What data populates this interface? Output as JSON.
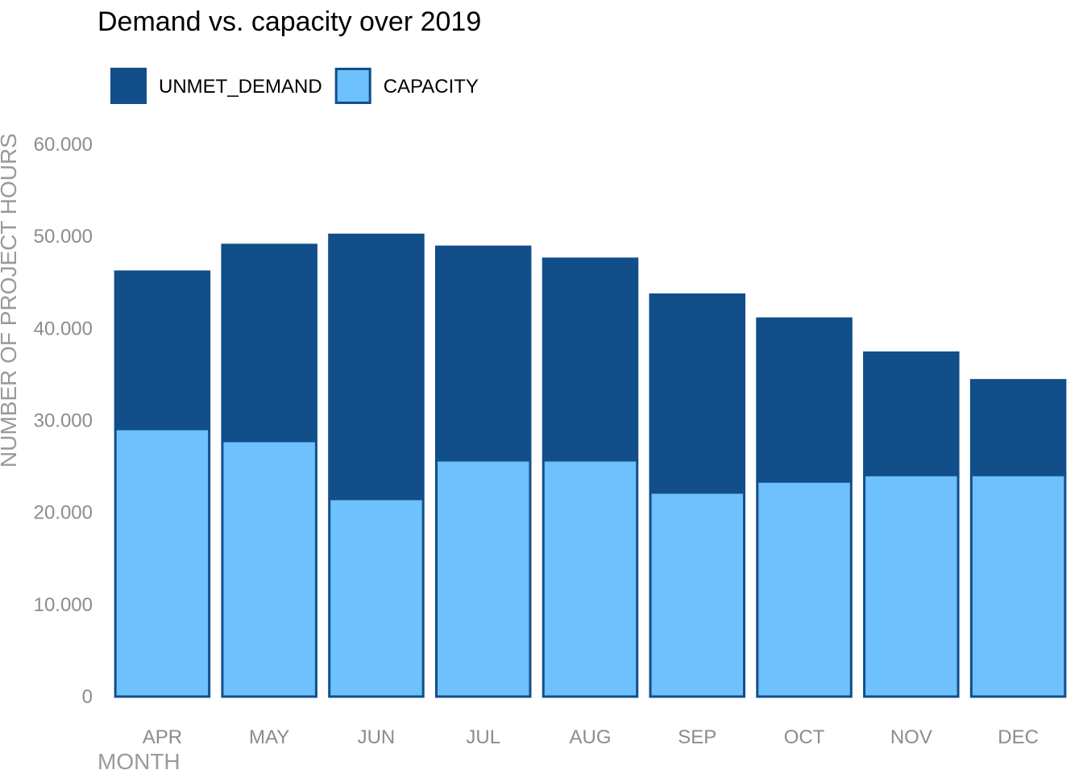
{
  "chart_data": {
    "type": "bar",
    "stacked": true,
    "title": "Demand vs. capacity over 2019",
    "xlabel": "MONTH",
    "ylabel": "NUMBER OF PROJECT HOURS",
    "categories": [
      "APR",
      "MAY",
      "JUN",
      "JUL",
      "AUG",
      "SEP",
      "OCT",
      "NOV",
      "DEC"
    ],
    "series": [
      {
        "name": "CAPACITY",
        "color": "#6ec1fc",
        "values": [
          29200,
          27900,
          21600,
          25800,
          25800,
          22300,
          23500,
          24200,
          24200
        ]
      },
      {
        "name": "UNMET_DEMAND",
        "color": "#114e8a",
        "values": [
          17100,
          21300,
          28700,
          23200,
          21900,
          21500,
          17700,
          13300,
          10300
        ]
      }
    ],
    "legend_order": [
      "UNMET_DEMAND",
      "CAPACITY"
    ],
    "legend_position": "top-left",
    "ylim": [
      0,
      60000
    ],
    "yticks": [
      0,
      10000,
      20000,
      30000,
      40000,
      50000,
      60000
    ],
    "ytick_labels": [
      "0",
      "10.000",
      "20.000",
      "30.000",
      "40.000",
      "50.000",
      "60.000"
    ],
    "grid": false
  }
}
